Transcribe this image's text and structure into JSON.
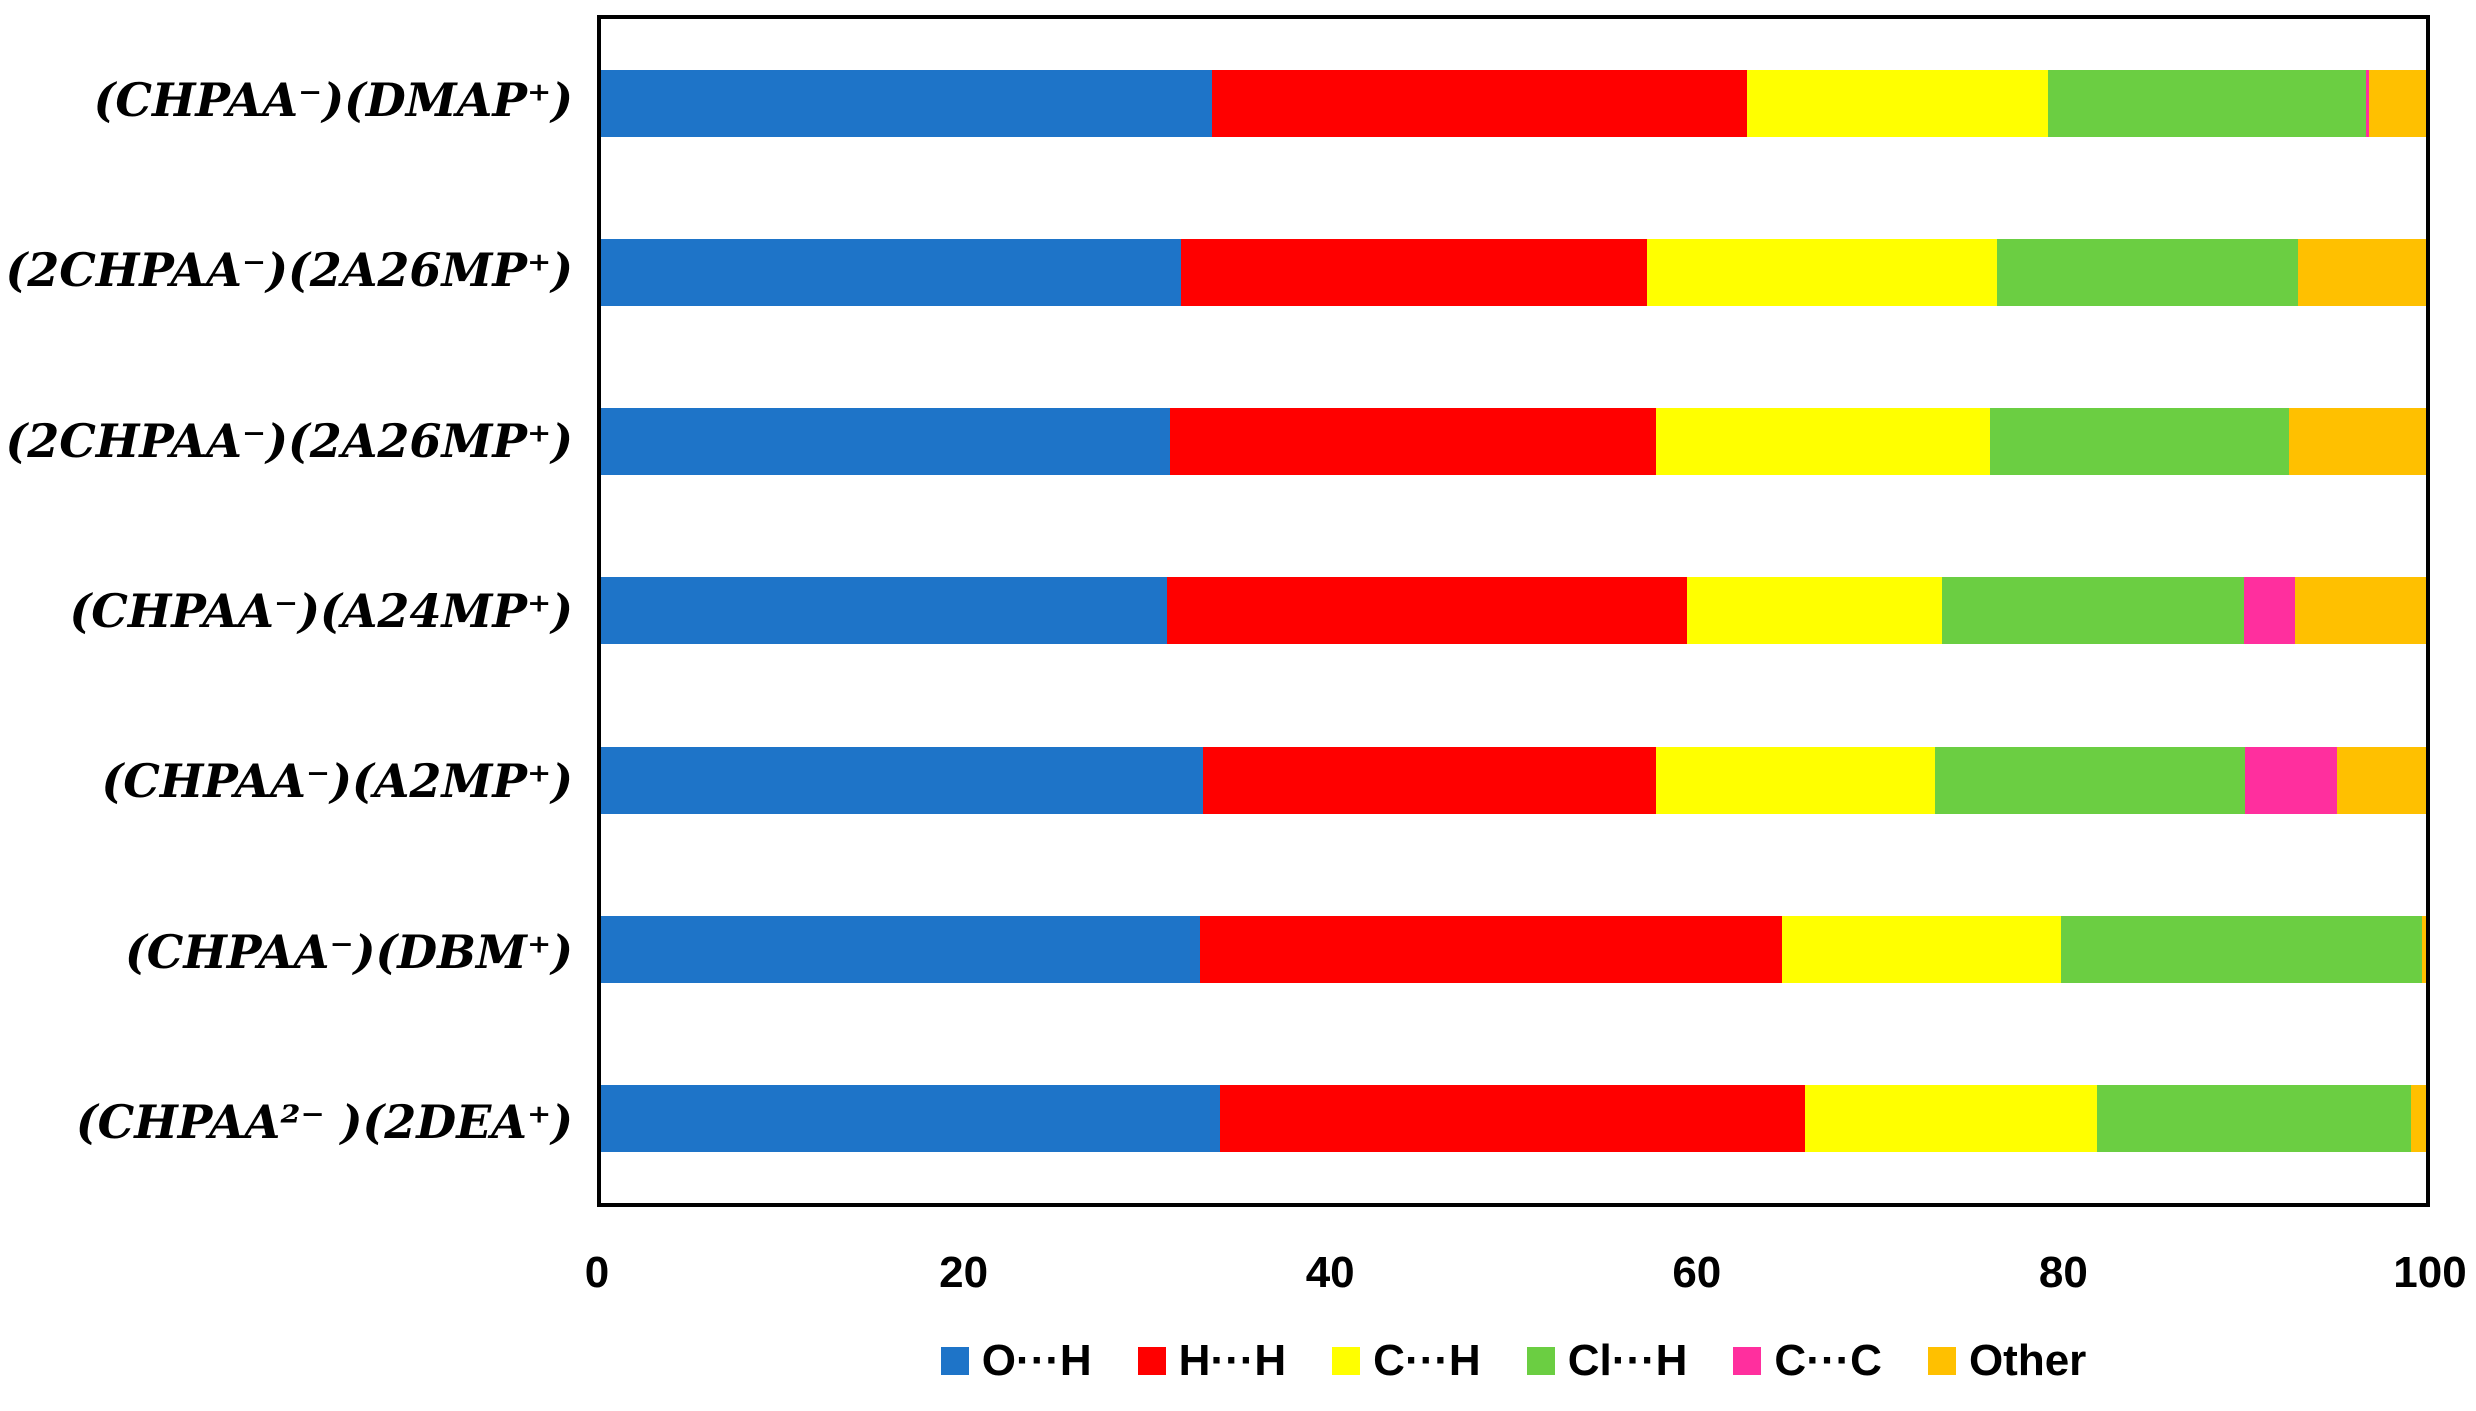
{
  "chart_data": {
    "type": "bar",
    "orientation": "horizontal-stacked",
    "title": "",
    "xlabel": "",
    "ylabel": "",
    "grid": false,
    "legend_position": "bottom",
    "x_axis": {
      "min": 0,
      "max": 100,
      "ticks": [
        "0",
        "20",
        "40",
        "60",
        "80",
        "100"
      ]
    },
    "categories": [
      "(CHPAA⁻)(DMAP⁺)",
      "(2CHPAA⁻)(2A26MP⁺)",
      "(2CHPAA⁻)(2A26MP⁺)",
      "(CHPAA⁻)(A24MP⁺)",
      "(CHPAA⁻)(A2MP⁺)",
      "(CHPAA⁻)(DBM⁺)",
      "(CHPAA²⁻ )(2DEA⁺)"
    ],
    "series": [
      {
        "name": "O···H",
        "color": "#1E74C8",
        "values": [
          33.5,
          31.8,
          31.2,
          31.0,
          33.0,
          32.8,
          33.9
        ]
      },
      {
        "name": "H···H",
        "color": "#FF0000",
        "values": [
          29.3,
          25.5,
          26.6,
          28.5,
          24.8,
          31.9,
          32.1
        ]
      },
      {
        "name": "C···H",
        "color": "#FFFF00",
        "values": [
          16.5,
          19.2,
          18.3,
          14.0,
          15.3,
          15.3,
          16.0
        ]
      },
      {
        "name": "Cl···H",
        "color": "#6BCE42",
        "values": [
          17.4,
          16.5,
          16.4,
          16.5,
          17.0,
          19.8,
          17.2
        ]
      },
      {
        "name": "C···C",
        "color": "#FF2F9E",
        "values": [
          0.2,
          0,
          0,
          2.8,
          5.0,
          0,
          0
        ]
      },
      {
        "name": "Other",
        "color": "#FFC000",
        "values": [
          3.1,
          7.0,
          7.5,
          7.2,
          4.9,
          0.2,
          0.8
        ]
      }
    ],
    "colors": {
      "axis_border": "#000000",
      "background": "#ffffff",
      "text": "#000000"
    }
  }
}
